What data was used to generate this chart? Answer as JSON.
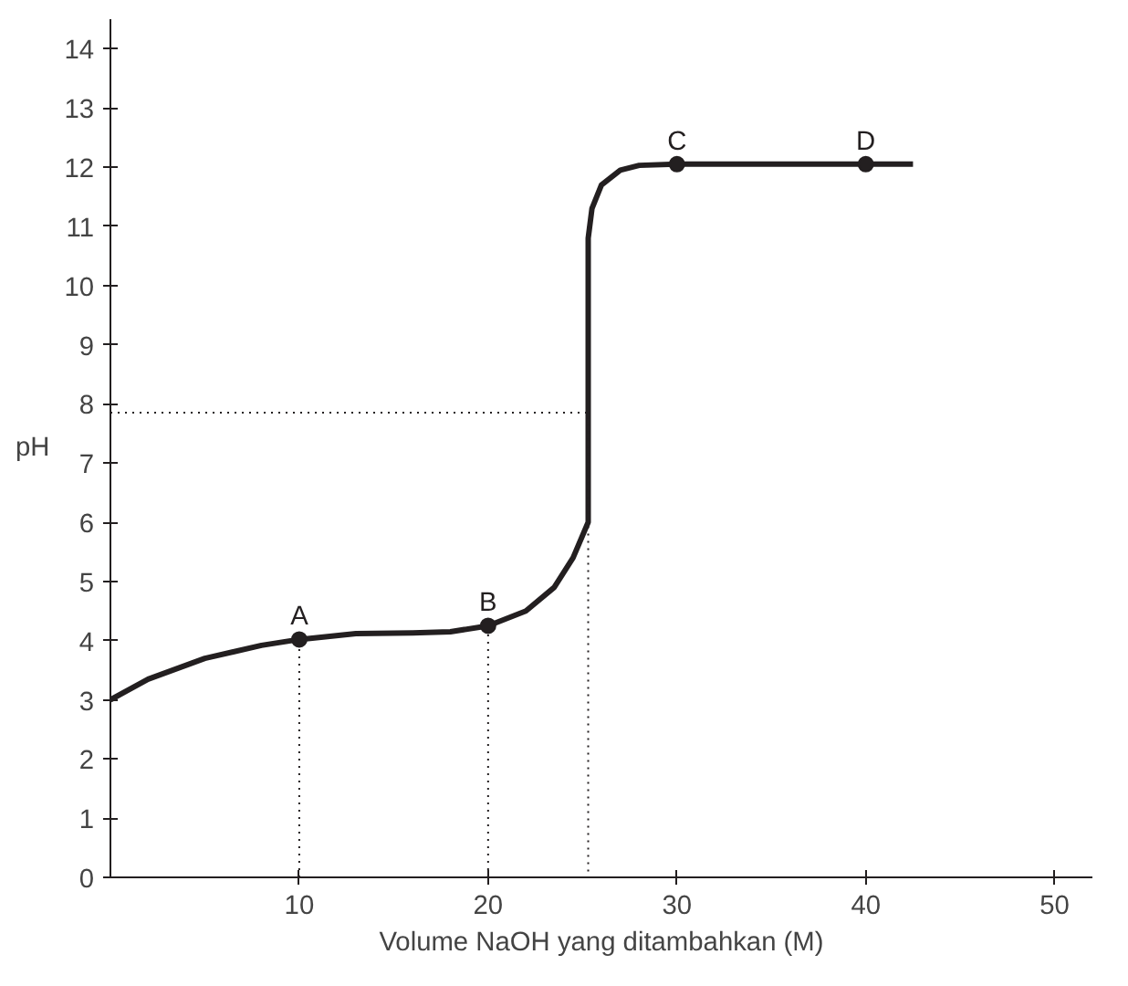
{
  "chart_data": {
    "type": "line",
    "xlabel": "Volume NaOH yang ditambahkan (M)",
    "ylabel": "pH",
    "xlim": [
      0,
      52
    ],
    "ylim": [
      0,
      14.5
    ],
    "xticks": [
      10,
      20,
      30,
      40,
      50
    ],
    "yticks": [
      0,
      1,
      2,
      3,
      4,
      5,
      6,
      7,
      8,
      9,
      10,
      11,
      12,
      13,
      14
    ],
    "grid": false,
    "series": [
      {
        "color": "#231f20",
        "line_style": "solid",
        "marker": "none",
        "x": [
          0,
          2,
          5,
          8,
          10,
          13,
          16,
          18,
          20,
          22,
          23.5,
          24.5,
          25.3,
          25.3,
          25.5,
          26,
          27,
          28,
          30,
          35,
          40,
          42.5
        ],
        "values": [
          3.0,
          3.35,
          3.7,
          3.92,
          4.02,
          4.12,
          4.13,
          4.15,
          4.25,
          4.5,
          4.9,
          5.4,
          6.0,
          10.8,
          11.3,
          11.7,
          11.95,
          12.03,
          12.05,
          12.05,
          12.05,
          12.05
        ]
      },
      {
        "color": "#231f20",
        "line_style": "dotted",
        "marker": "none",
        "x": [
          0,
          25.3,
          25.3
        ],
        "values": [
          7.85,
          7.85,
          0
        ]
      },
      {
        "color": "#231f20",
        "line_style": "dotted",
        "marker": "none",
        "x": [
          10,
          10
        ],
        "values": [
          0,
          4.02
        ]
      },
      {
        "color": "#231f20",
        "line_style": "dotted",
        "marker": "none",
        "x": [
          20,
          20
        ],
        "values": [
          0,
          4.25
        ]
      },
      {
        "type": "scatter",
        "color": "#231f20",
        "marker": "circle",
        "x": [
          10,
          20,
          30,
          40
        ],
        "values": [
          4.02,
          4.25,
          12.05,
          12.05
        ]
      }
    ],
    "annotations": [
      {
        "text": "A",
        "x": 10,
        "y": 4.02
      },
      {
        "text": "B",
        "x": 20,
        "y": 4.25
      },
      {
        "text": "C",
        "x": 30,
        "y": 12.05
      },
      {
        "text": "D",
        "x": 40,
        "y": 12.05
      }
    ]
  }
}
